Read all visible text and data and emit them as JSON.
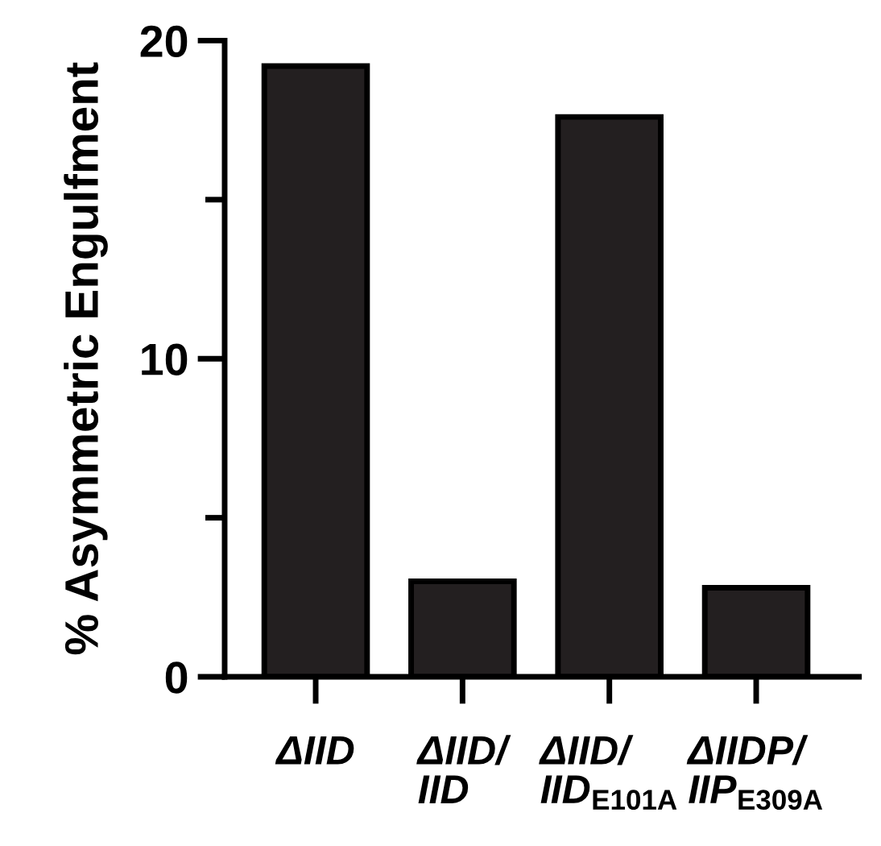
{
  "chart_data": {
    "type": "bar",
    "ylabel": "% Asymmetric Engulfment",
    "categories": [
      "ΔIID",
      "ΔIID/\nIID",
      "ΔIID/\nIID$_{E101A}$",
      "ΔIIDP/\nIIP$_{E309A}$"
    ],
    "values": [
      19.2,
      3.0,
      17.6,
      2.8
    ],
    "color": "#231f20",
    "ylim": [
      0,
      20
    ],
    "yticks": [
      0,
      {
        "value": 5,
        "label": null
      },
      10,
      {
        "value": 15,
        "label": null
      },
      20
    ],
    "grid": false
  }
}
